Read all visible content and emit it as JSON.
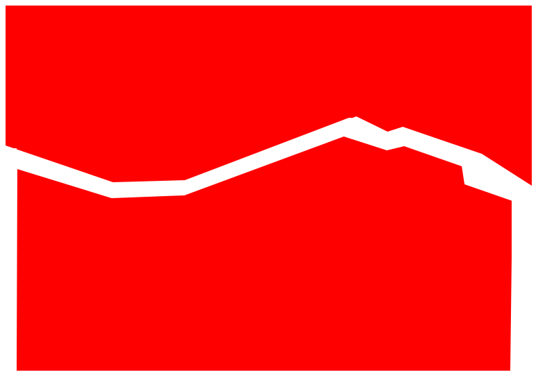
{
  "colors": {
    "background": "#ffffff",
    "fill": "#ff0000",
    "stroke": "#ffffff"
  },
  "shapes": [
    {
      "name": "upper-red-region",
      "icon": "red-polygon"
    },
    {
      "name": "lower-red-region",
      "icon": "red-polygon"
    },
    {
      "name": "white-dividing-band",
      "icon": "white-polyline"
    }
  ]
}
